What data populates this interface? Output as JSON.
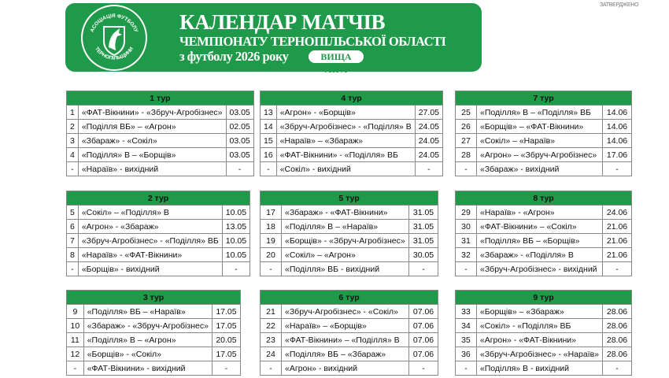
{
  "header": {
    "logo_text_top": "АСОЦІАЦІЯ ФУТБОЛУ",
    "logo_text_bottom": "ТЕРНОПІЛЬЩИНИ",
    "title": "КАЛЕНДАР МАТЧІВ",
    "subtitle": "ЧЕМПІОНАТУ ТЕРНОПІЛЬСЬКОЇ ОБЛАСТІ",
    "subtitle2": "з футболу 2026 року",
    "league": "ВИЩА ЛІГА",
    "approved": "ЗАТВЕРДЖЕНО"
  },
  "colors": {
    "brand_green": "#1f9a4a"
  },
  "tours": [
    {
      "title": "1 тур",
      "matches": [
        [
          "1",
          "«ФАТ-Вікнини» - «Збруч-Агробізнес»",
          "03.05"
        ],
        [
          "2",
          "«Поділля ВБ» – «Агрон»",
          "02.05"
        ],
        [
          "3",
          "«Збараж» - «Сокіл»",
          "03.05"
        ],
        [
          "4",
          "«Поділля» В – «Борщів»",
          "03.05"
        ],
        [
          "-",
          "«Нараїв» - вихідний",
          "-"
        ]
      ]
    },
    {
      "title": "2 тур",
      "matches": [
        [
          "5",
          "«Сокіл» – «Поділля» В",
          "10.05"
        ],
        [
          "6",
          "«Агрон» - «Збараж»",
          "13.05"
        ],
        [
          "7",
          "«Збруч-Агробізнес» - «Поділля» ВБ",
          "10.05"
        ],
        [
          "8",
          "«Нараїв» - «ФАТ-Вікнини»",
          "10.05"
        ],
        [
          "-",
          "«Борщів» - вихідний",
          "-"
        ]
      ]
    },
    {
      "title": "3 тур",
      "matches": [
        [
          "9",
          "«Поділля» ВБ – «Нараїв»",
          "17.05"
        ],
        [
          "10",
          "«Збараж» - «Збруч-Агробізнес»",
          "17.05"
        ],
        [
          "11",
          "«Поділля» В – «Агрон»",
          "20.05"
        ],
        [
          "12",
          "«Борщів» - «Сокіл»",
          "17.05"
        ],
        [
          "-",
          "«ФАТ-Вікнини» - вихідний",
          "-"
        ]
      ]
    },
    {
      "title": "4 тур",
      "matches": [
        [
          "13",
          "«Агрон» - «Борщів»",
          "27.05"
        ],
        [
          "14",
          "«Збруч-Агробізнес» - «Поділля» В",
          "24.05"
        ],
        [
          "15",
          "«Нараїв» – «Збараж»",
          "24.05"
        ],
        [
          "16",
          "«ФАТ-Вікнини» - «Поділля» ВБ",
          "24.05"
        ],
        [
          "-",
          "«Сокіл» - вихідний",
          "-"
        ]
      ]
    },
    {
      "title": "5 тур",
      "matches": [
        [
          "17",
          "«Збараж» - «ФАТ-Вікнини»",
          "31.05"
        ],
        [
          "18",
          "«Поділля» В – «Нараїв»",
          "31.05"
        ],
        [
          "19",
          "«Борщів» - «Збруч-Агробізнес»",
          "31.05"
        ],
        [
          "20",
          "«Сокіл» – «Агрон»",
          "30.05"
        ],
        [
          "-",
          "«Поділля» ВБ - вихідний",
          "-"
        ]
      ]
    },
    {
      "title": "6 тур",
      "matches": [
        [
          "21",
          "«Збруч-Агробізнес» - «Сокіл»",
          "07.06"
        ],
        [
          "22",
          "«Нараїв» – «Борщів»",
          "07.06"
        ],
        [
          "23",
          "«ФАТ-Вікнини» – «Поділля» В",
          "07.06"
        ],
        [
          "24",
          "«Поділля» ВБ – «Збараж»",
          "07.06"
        ],
        [
          "-",
          "«Агрон» - вихідний",
          "-"
        ]
      ]
    },
    {
      "title": "7 тур",
      "matches": [
        [
          "25",
          "«Поділля» В – «Поділля» ВБ",
          "14.06"
        ],
        [
          "26",
          "«Борщів» – «ФАТ-Вікнини»",
          "14.06"
        ],
        [
          "27",
          "«Сокіл» – «Нараїв»",
          "14.06"
        ],
        [
          "28",
          "«Агрон» – «Збруч-Агробізнес»",
          "17.06"
        ],
        [
          "-",
          "«Збараж» - вихідний",
          "-"
        ]
      ]
    },
    {
      "title": "8 тур",
      "matches": [
        [
          "29",
          "«Нараїв» - «Агрон»",
          "24.06"
        ],
        [
          "30",
          "«ФАТ-Вікнини» – «Сокіл»",
          "21.06"
        ],
        [
          "31",
          "«Поділля» ВБ – «Борщів»",
          "21.06"
        ],
        [
          "32",
          "«Збараж» - «Поділля» В",
          "21.06"
        ],
        [
          "-",
          "«Збруч-Агробізнес» - вихідний",
          "-"
        ]
      ]
    },
    {
      "title": "9 тур",
      "matches": [
        [
          "33",
          "«Борщів» – «Збараж»",
          "28.06"
        ],
        [
          "34",
          "«Сокіл» - «Поділля» ВБ",
          "28.06"
        ],
        [
          "35",
          "«Агрон» - «ФАТ-Вікнини»",
          "28.06"
        ],
        [
          "36",
          "«Збруч-Агробізнес» - «Нараїв»",
          "28.06"
        ],
        [
          "-",
          "«Поділля» В - вихідний",
          "-"
        ]
      ]
    }
  ]
}
